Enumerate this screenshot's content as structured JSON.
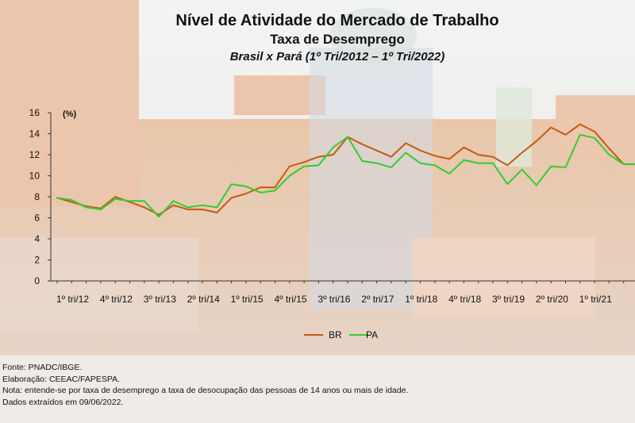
{
  "header": {
    "title": "Nível de Atividade do Mercado de Trabalho",
    "subtitle": "Taxa de Desemprego",
    "period": "Brasil x Pará (1º Tri/2012 – 1º Tri/2022)"
  },
  "colors": {
    "BR": "#c55a11",
    "PA": "#33cc33"
  },
  "chart_data": {
    "type": "line",
    "ylabel": "(%)",
    "ylim": [
      0,
      16
    ],
    "yticks": [
      0,
      2,
      4,
      6,
      8,
      10,
      12,
      14,
      16
    ],
    "xtick_labels": [
      "1º tri/12",
      "4º tri/12",
      "3º tri/13",
      "2º tri/14",
      "1º tri/15",
      "4º tri/15",
      "3º tri/16",
      "2º tri/17",
      "1º tri/18",
      "4º tri/18",
      "3º tri/19",
      "2º tri/20",
      "1º tri/21"
    ],
    "xtick_every": 3,
    "legend_position": "bottom",
    "x": [
      "1º tri/12",
      "2º tri/12",
      "3º tri/12",
      "4º tri/12",
      "1º tri/13",
      "2º tri/13",
      "3º tri/13",
      "4º tri/13",
      "1º tri/14",
      "2º tri/14",
      "3º tri/14",
      "4º tri/14",
      "1º tri/15",
      "2º tri/15",
      "3º tri/15",
      "4º tri/15",
      "1º tri/16",
      "2º tri/16",
      "3º tri/16",
      "4º tri/16",
      "1º tri/17",
      "2º tri/17",
      "3º tri/17",
      "4º tri/17",
      "1º tri/18",
      "2º tri/18",
      "3º tri/18",
      "4º tri/18",
      "1º tri/19",
      "2º tri/19",
      "3º tri/19",
      "4º tri/19",
      "1º tri/20",
      "2º tri/20",
      "3º tri/20",
      "4º tri/20",
      "1º tri/21",
      "2º tri/21",
      "3º tri/21",
      "4º tri/21",
      "1º tri/22"
    ],
    "series": [
      {
        "name": "BR",
        "values": [
          7.9,
          7.5,
          7.1,
          6.9,
          8.0,
          7.5,
          7.0,
          6.3,
          7.2,
          6.8,
          6.8,
          6.5,
          7.9,
          8.3,
          8.9,
          8.9,
          10.9,
          11.3,
          11.8,
          12.0,
          13.7,
          13.0,
          12.4,
          11.8,
          13.1,
          12.4,
          11.9,
          11.6,
          12.7,
          12.0,
          11.8,
          11.0,
          12.2,
          13.3,
          14.6,
          13.9,
          14.9,
          14.2,
          12.6,
          11.1,
          11.1
        ]
      },
      {
        "name": "PA",
        "values": [
          7.9,
          7.7,
          7.0,
          6.8,
          7.8,
          7.6,
          7.6,
          6.1,
          7.6,
          7.0,
          7.2,
          7.0,
          9.2,
          9.0,
          8.4,
          8.6,
          10.0,
          10.9,
          11.0,
          12.7,
          13.7,
          11.4,
          11.2,
          10.8,
          12.2,
          11.2,
          11.0,
          10.2,
          11.5,
          11.2,
          11.2,
          9.2,
          10.6,
          9.1,
          10.9,
          10.8,
          13.9,
          13.6,
          12.0,
          11.1,
          11.1
        ]
      }
    ]
  },
  "footer": {
    "source": "Fonte: PNADC/IBGE.",
    "elaboration": "Elaboração: CEEAC/FAPESPA.",
    "note": "Nota: entende-se por taxa de desemprego a taxa de desocupação das pessoas de 14 anos ou mais de idade.",
    "extracted": "Dados extraídos em 09/06/2022."
  }
}
